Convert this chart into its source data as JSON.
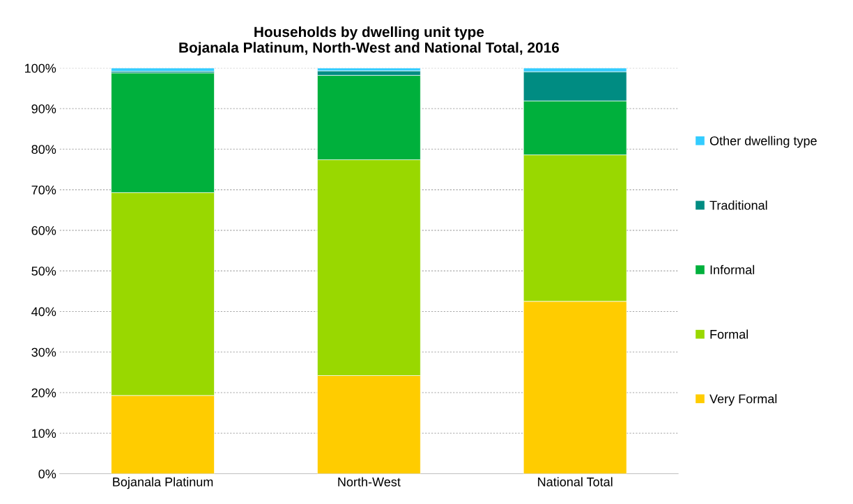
{
  "chart_data": {
    "type": "bar",
    "stacked": true,
    "title": "Households by dwelling unit type\nBojanala Platinum, North-West and National Total, 2016",
    "categories": [
      "Bojanala Platinum",
      "North-West",
      "National Total"
    ],
    "series": [
      {
        "name": "Very Formal",
        "color": "#ffcc00",
        "values": [
          19.3,
          24.2,
          42.5
        ]
      },
      {
        "name": "Formal",
        "color": "#99d800",
        "values": [
          50.0,
          53.2,
          36.1
        ]
      },
      {
        "name": "Informal",
        "color": "#00b03c",
        "values": [
          29.5,
          20.8,
          13.3
        ]
      },
      {
        "name": "Traditional",
        "color": "#008c82",
        "values": [
          0.4,
          1.1,
          7.2
        ]
      },
      {
        "name": "Other dwelling type",
        "color": "#33ccff",
        "values": [
          0.8,
          0.7,
          0.9
        ]
      }
    ],
    "ylim": [
      0,
      100
    ],
    "yticks": [
      {
        "value": 0,
        "label": "0%"
      },
      {
        "value": 10,
        "label": "10%"
      },
      {
        "value": 20,
        "label": "20%"
      },
      {
        "value": 30,
        "label": "30%"
      },
      {
        "value": 40,
        "label": "40%"
      },
      {
        "value": 50,
        "label": "50%"
      },
      {
        "value": 60,
        "label": "60%"
      },
      {
        "value": 70,
        "label": "70%"
      },
      {
        "value": 80,
        "label": "80%"
      },
      {
        "value": 90,
        "label": "90%"
      },
      {
        "value": 100,
        "label": "100%"
      }
    ],
    "grid": "y",
    "legend": "right"
  }
}
